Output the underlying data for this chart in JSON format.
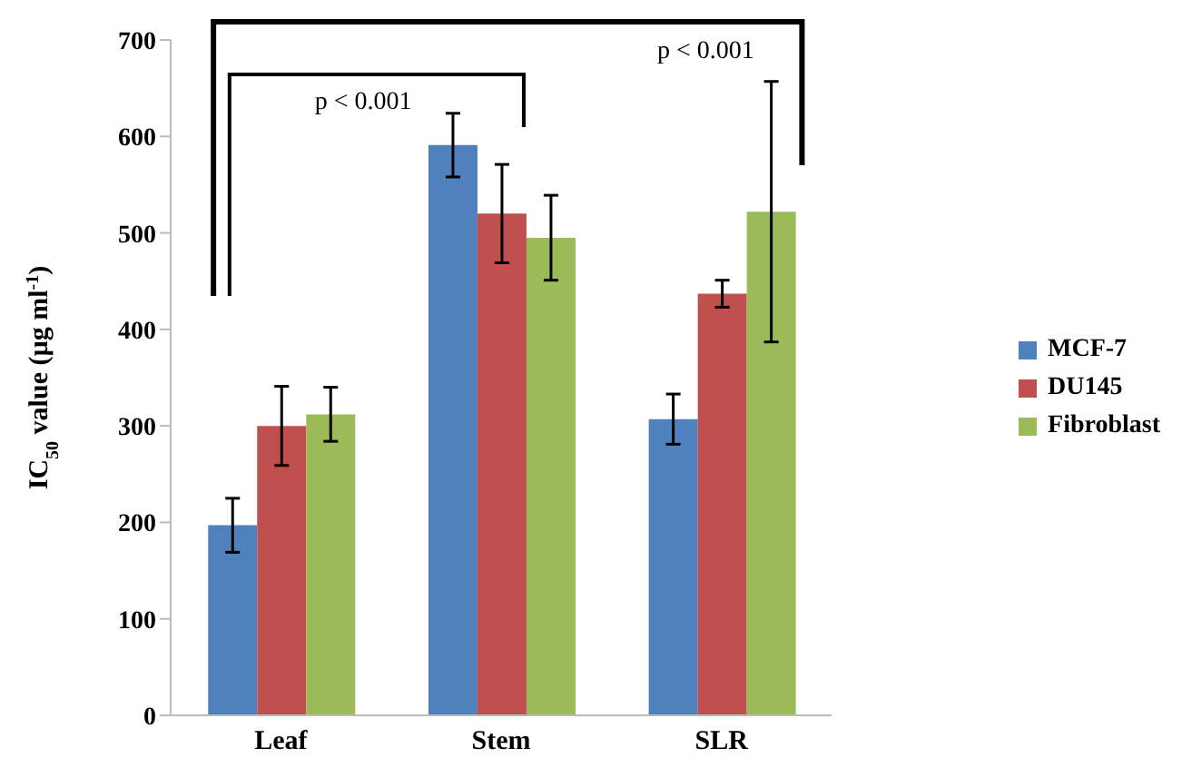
{
  "chart_data": {
    "type": "bar",
    "ylabel": "IC$_{50}$ value (µg ml$^{-1}$)",
    "categories": [
      "Leaf",
      "Stem",
      "SLR"
    ],
    "series": [
      {
        "name": "MCF-7",
        "color": "#4f81bd",
        "values": [
          197,
          591,
          307
        ],
        "errors": [
          28,
          33,
          26
        ]
      },
      {
        "name": "DU145",
        "color": "#c0504d",
        "values": [
          300,
          520,
          437
        ],
        "errors": [
          41,
          51,
          14
        ]
      },
      {
        "name": "Fibroblast",
        "color": "#9bbb59",
        "values": [
          312,
          495,
          522
        ],
        "errors": [
          28,
          44,
          135
        ]
      }
    ],
    "ylim": [
      0,
      700
    ],
    "yticks": [
      0,
      100,
      200,
      300,
      400,
      500,
      600,
      700
    ],
    "legend": "right",
    "annotations": [
      "p < 0.001",
      "p < 0.001"
    ]
  }
}
